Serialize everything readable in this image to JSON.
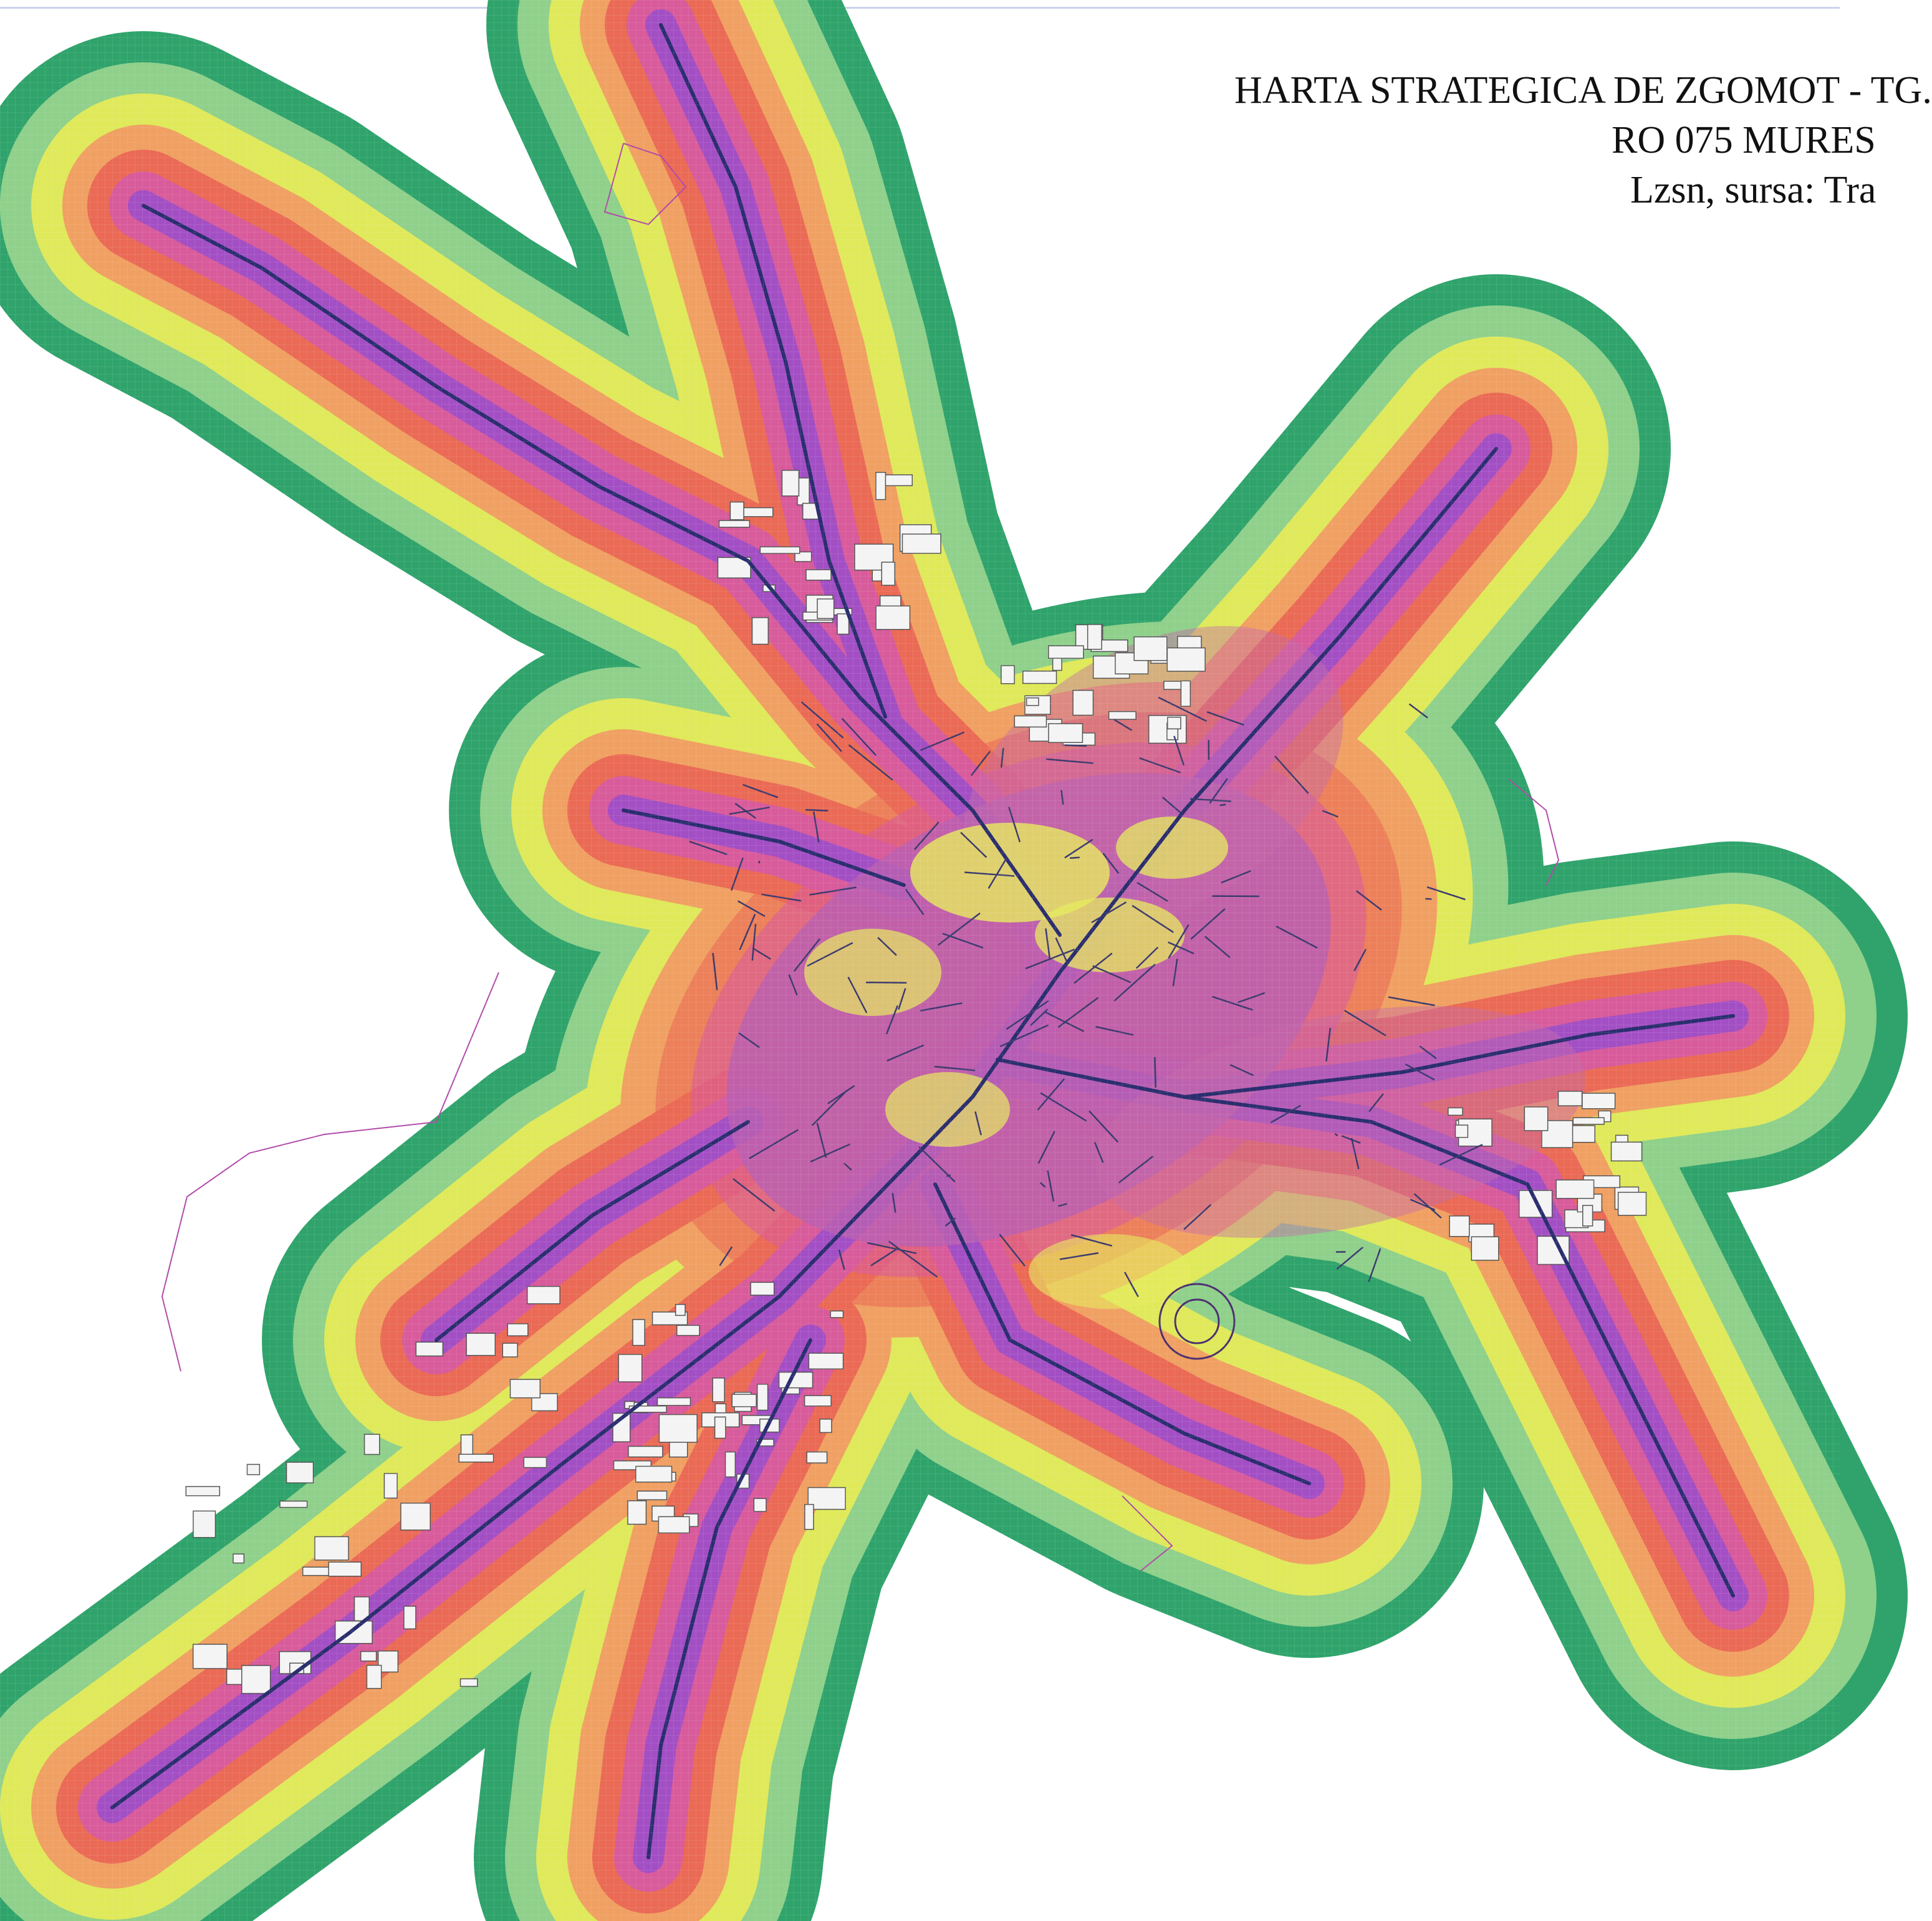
{
  "map": {
    "title_lines": [
      "HARTA STRATEGICA DE ZGOMOT - TG.",
      "RO 075 MURES",
      "Lzsn, sursa: Tra"
    ],
    "noise_bands": [
      {
        "band": "outer",
        "color": "#2fa36b"
      },
      {
        "band": "ring-2",
        "color": "#8fd08b"
      },
      {
        "band": "ring-3",
        "color": "#dfe95a"
      },
      {
        "band": "ring-4",
        "color": "#f0a062"
      },
      {
        "band": "ring-5",
        "color": "#ea6a55"
      },
      {
        "band": "ring-6",
        "color": "#d85b9b"
      },
      {
        "band": "core",
        "color": "#a34fc4"
      }
    ],
    "road_color": "#2a2e6e",
    "boundary_color": "#b04aa8",
    "building_fill": "#f4f4f4"
  }
}
